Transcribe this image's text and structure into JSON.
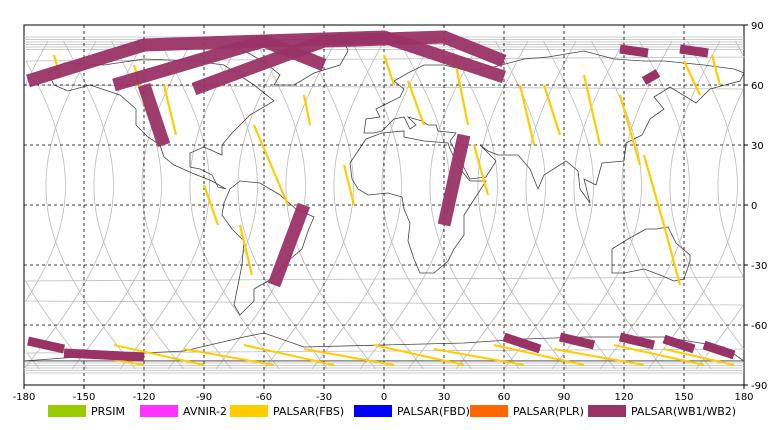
{
  "map": {
    "lon_ticks": [
      "-180",
      "-150",
      "-120",
      "-90",
      "-60",
      "-30",
      "0",
      "30",
      "60",
      "90",
      "120",
      "150",
      "180"
    ],
    "lat_ticks": [
      "90",
      "60",
      "30",
      "0",
      "-30",
      "-60",
      "-90"
    ],
    "lon_range": [
      -180,
      180
    ],
    "lat_range": [
      -90,
      90
    ],
    "grid": "dashed"
  },
  "colors": {
    "prism": "#99cc00",
    "avnir": "#ff33ff",
    "fbs": "#ffcc00",
    "fbd": "#0000ff",
    "plr": "#ff6600",
    "wb": "#993366",
    "orbit": "#bbbbbb",
    "coast": "#444444"
  },
  "legend": [
    {
      "label": "PRSIM",
      "color": "#99cc00"
    },
    {
      "label": "AVNIR-2",
      "color": "#ff33ff"
    },
    {
      "label": "PALSAR(FBS)",
      "color": "#ffcc00"
    },
    {
      "label": "PALSAR(FBD)",
      "color": "#0000ff"
    },
    {
      "label": "PALSAR(PLR)",
      "color": "#ff6600"
    },
    {
      "label": "PALSAR(WB1/WB2)",
      "color": "#993366"
    }
  ],
  "wb_swaths": [
    {
      "lon": [
        -178,
        -120,
        -60,
        -30
      ],
      "lat": [
        62,
        80,
        82,
        70
      ]
    },
    {
      "lon": [
        -135,
        -60,
        0,
        60
      ],
      "lat": [
        60,
        82,
        84,
        64
      ]
    },
    {
      "lon": [
        -95,
        -30,
        30,
        60
      ],
      "lat": [
        58,
        82,
        84,
        72
      ]
    },
    {
      "lon": [
        -120,
        -110
      ],
      "lat": [
        60,
        30
      ]
    },
    {
      "lon": [
        30,
        40
      ],
      "lat": [
        -10,
        35
      ]
    },
    {
      "lon": [
        -55,
        -40
      ],
      "lat": [
        -40,
        0
      ]
    }
  ],
  "fbs_tracks": [
    {
      "lon": [
        -165,
        -162
      ],
      "lat": [
        75,
        65
      ]
    },
    {
      "lon": [
        -125,
        -118
      ],
      "lat": [
        70,
        45
      ]
    },
    {
      "lon": [
        -110,
        -104
      ],
      "lat": [
        60,
        35
      ]
    },
    {
      "lon": [
        -90,
        -83
      ],
      "lat": [
        10,
        -10
      ]
    },
    {
      "lon": [
        -72,
        -66
      ],
      "lat": [
        -10,
        -35
      ]
    },
    {
      "lon": [
        -65,
        -48
      ],
      "lat": [
        40,
        0
      ]
    },
    {
      "lon": [
        -40,
        -37
      ],
      "lat": [
        55,
        40
      ]
    },
    {
      "lon": [
        -20,
        -15
      ],
      "lat": [
        20,
        0
      ]
    },
    {
      "lon": [
        0,
        5
      ],
      "lat": [
        75,
        60
      ]
    },
    {
      "lon": [
        12,
        20
      ],
      "lat": [
        62,
        40
      ]
    },
    {
      "lon": [
        35,
        42
      ],
      "lat": [
        75,
        40
      ]
    },
    {
      "lon": [
        45,
        52
      ],
      "lat": [
        30,
        5
      ]
    },
    {
      "lon": [
        68,
        75
      ],
      "lat": [
        60,
        30
      ]
    },
    {
      "lon": [
        80,
        88
      ],
      "lat": [
        60,
        35
      ]
    },
    {
      "lon": [
        100,
        108
      ],
      "lat": [
        65,
        30
      ]
    },
    {
      "lon": [
        118,
        128
      ],
      "lat": [
        55,
        20
      ]
    },
    {
      "lon": [
        130,
        140
      ],
      "lat": [
        25,
        -10
      ]
    },
    {
      "lon": [
        140,
        148
      ],
      "lat": [
        -10,
        -40
      ]
    },
    {
      "lon": [
        150,
        158
      ],
      "lat": [
        72,
        55
      ]
    },
    {
      "lon": [
        164,
        168
      ],
      "lat": [
        75,
        60
      ]
    }
  ],
  "south_fbs": [
    {
      "lon": [
        -165,
        -120
      ],
      "lat": [
        -72,
        -80
      ]
    },
    {
      "lon": [
        -135,
        -90
      ],
      "lat": [
        -70,
        -80
      ]
    },
    {
      "lon": [
        -100,
        -55
      ],
      "lat": [
        -72,
        -80
      ]
    },
    {
      "lon": [
        -70,
        -25
      ],
      "lat": [
        -70,
        -80
      ]
    },
    {
      "lon": [
        -40,
        5
      ],
      "lat": [
        -72,
        -80
      ]
    },
    {
      "lon": [
        -5,
        40
      ],
      "lat": [
        -70,
        -80
      ]
    },
    {
      "lon": [
        25,
        70
      ],
      "lat": [
        -72,
        -80
      ]
    },
    {
      "lon": [
        55,
        100
      ],
      "lat": [
        -70,
        -80
      ]
    },
    {
      "lon": [
        85,
        130
      ],
      "lat": [
        -72,
        -80
      ]
    },
    {
      "lon": [
        115,
        160
      ],
      "lat": [
        -70,
        -80
      ]
    },
    {
      "lon": [
        140,
        175
      ],
      "lat": [
        -72,
        -80
      ]
    }
  ],
  "south_wb": [
    {
      "lon": [
        -178,
        -160
      ],
      "lat": [
        -68,
        -72
      ]
    },
    {
      "lon": [
        -160,
        -120
      ],
      "lat": [
        -74,
        -76
      ]
    },
    {
      "lon": [
        60,
        78
      ],
      "lat": [
        -66,
        -72
      ]
    },
    {
      "lon": [
        88,
        105
      ],
      "lat": [
        -66,
        -70
      ]
    },
    {
      "lon": [
        118,
        135
      ],
      "lat": [
        -66,
        -70
      ]
    },
    {
      "lon": [
        140,
        155
      ],
      "lat": [
        -67,
        -72
      ]
    },
    {
      "lon": [
        160,
        175
      ],
      "lat": [
        -70,
        -75
      ]
    }
  ],
  "north_wb": [
    {
      "lon": [
        118,
        132
      ],
      "lat": [
        78,
        76
      ]
    },
    {
      "lon": [
        148,
        162
      ],
      "lat": [
        78,
        76
      ]
    },
    {
      "lon": [
        130,
        137
      ],
      "lat": [
        62,
        66
      ]
    }
  ]
}
